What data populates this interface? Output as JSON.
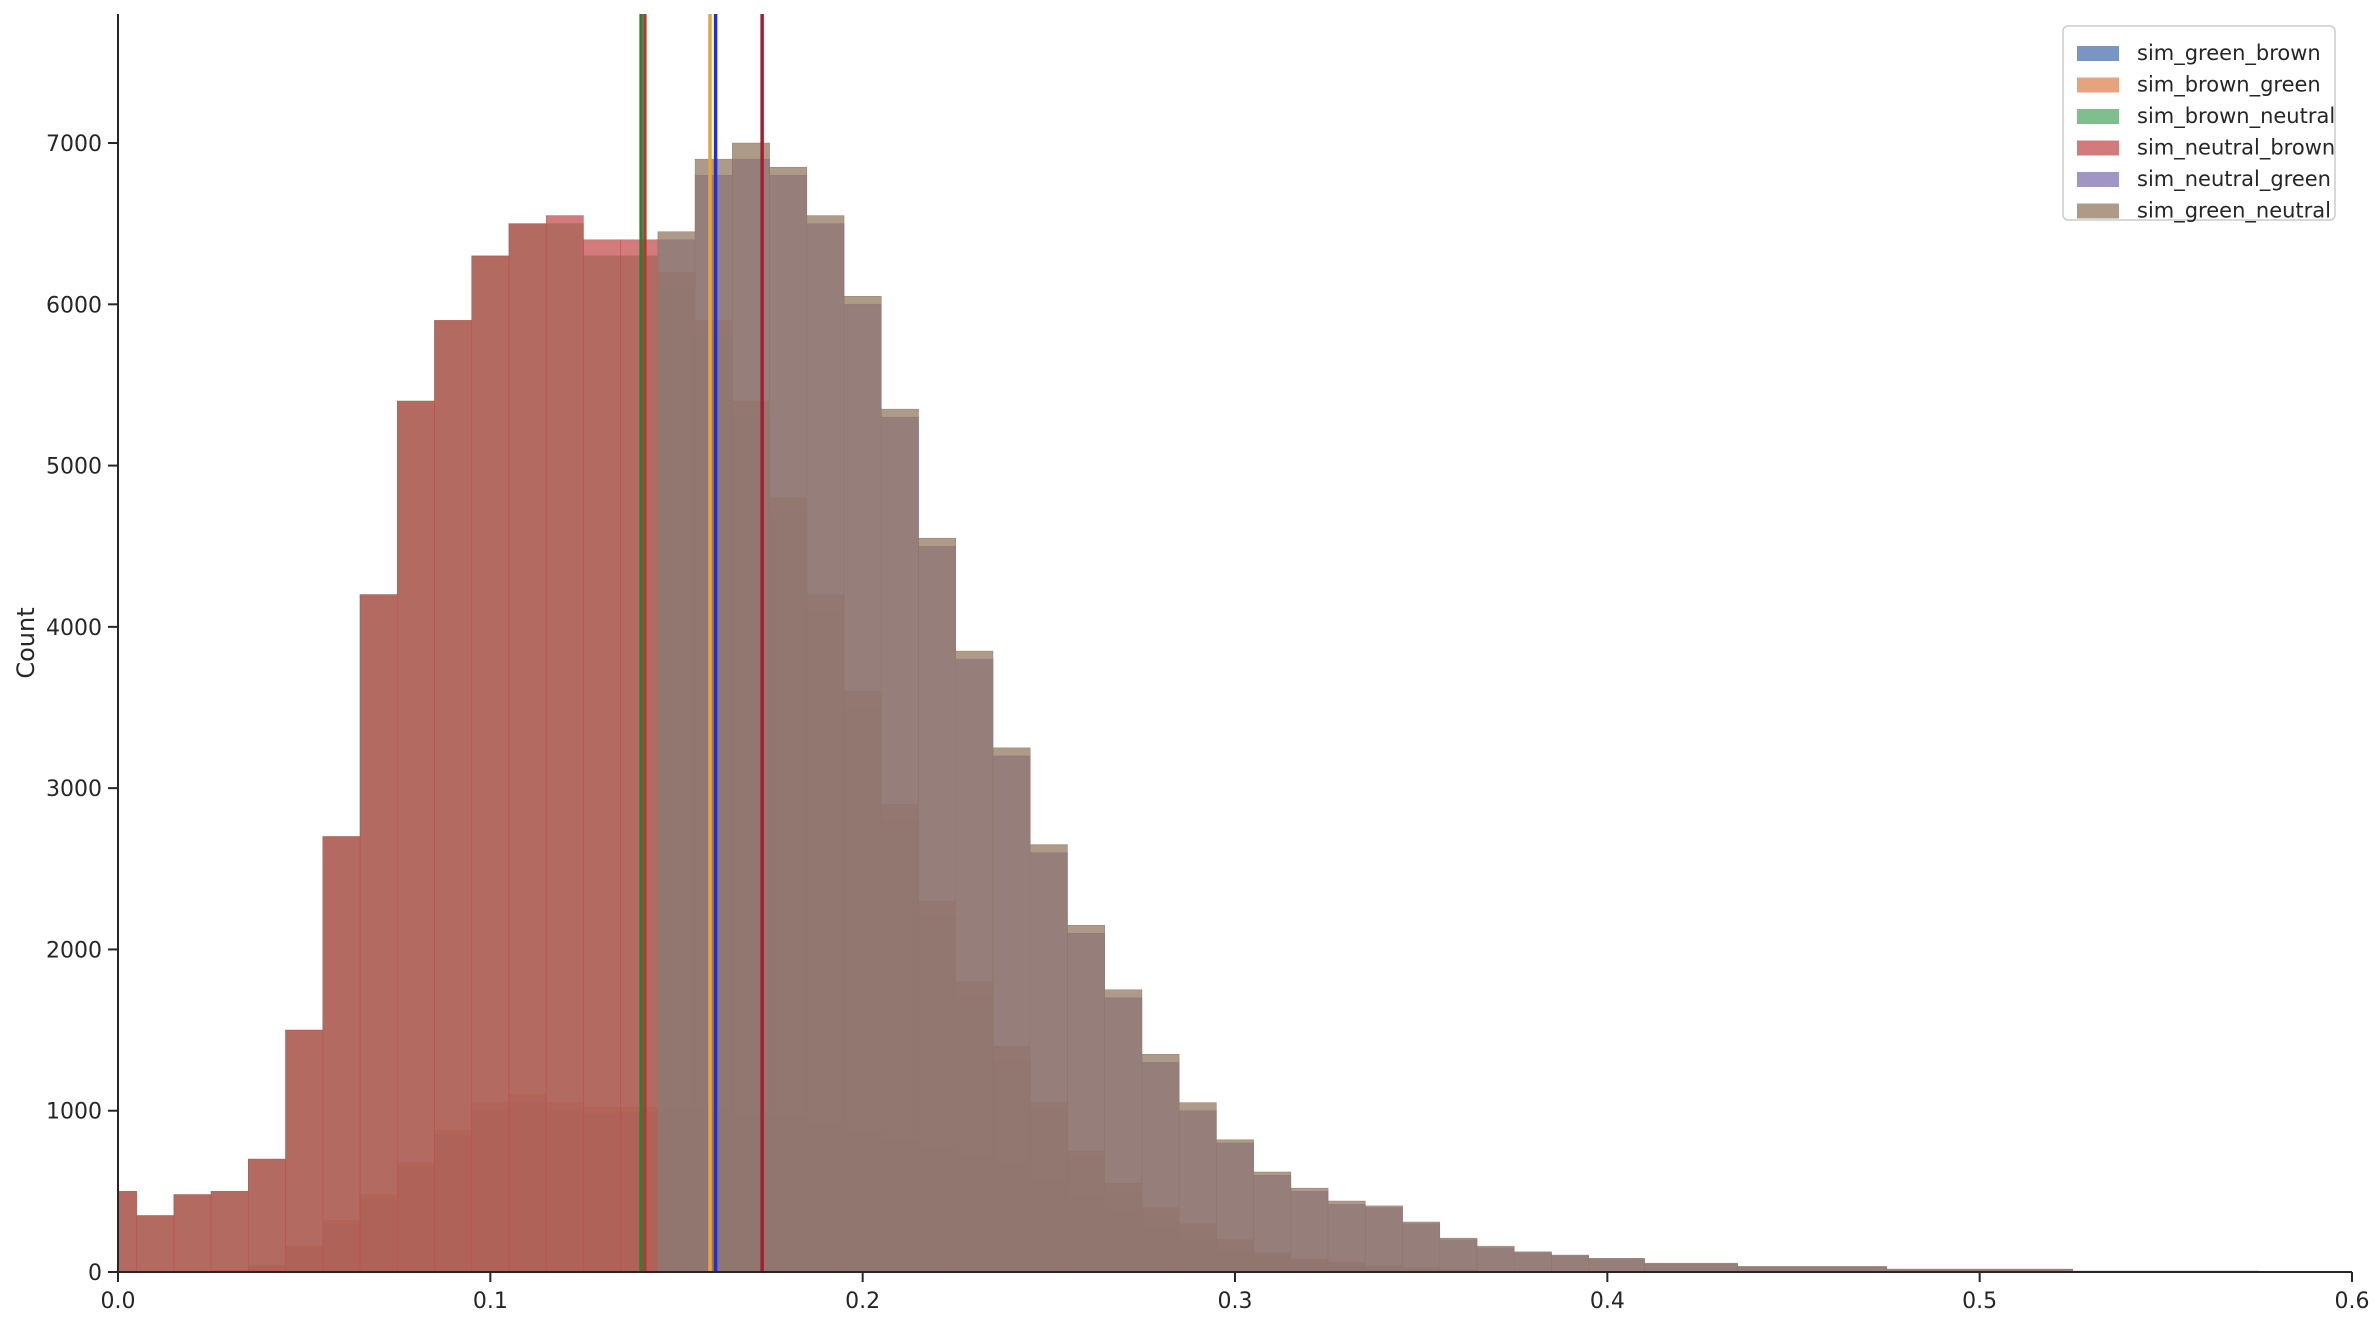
{
  "chart_data": {
    "type": "histogram",
    "title": "",
    "xlabel": "",
    "ylabel": "Count",
    "xlim": [
      0.0,
      0.6
    ],
    "ylim": [
      0,
      7800
    ],
    "xticks": [
      0.0,
      0.1,
      0.2,
      0.3,
      0.4,
      0.5,
      0.6
    ],
    "xtick_labels": [
      "0.0",
      "0.1",
      "0.2",
      "0.3",
      "0.4",
      "0.5",
      "0.6"
    ],
    "yticks": [
      0,
      1000,
      2000,
      3000,
      4000,
      5000,
      6000,
      7000
    ],
    "ytick_labels": [
      "0",
      "1000",
      "2000",
      "3000",
      "4000",
      "5000",
      "6000",
      "7000"
    ],
    "grid": false,
    "legend_position": "top-right",
    "x_centers": [
      0.0,
      0.01,
      0.02,
      0.03,
      0.04,
      0.05,
      0.06,
      0.07,
      0.08,
      0.09,
      0.1,
      0.11,
      0.12,
      0.13,
      0.14,
      0.15,
      0.16,
      0.17,
      0.18,
      0.19,
      0.2,
      0.21,
      0.22,
      0.23,
      0.24,
      0.25,
      0.26,
      0.27,
      0.28,
      0.29,
      0.3,
      0.31,
      0.32,
      0.33,
      0.34,
      0.35,
      0.36,
      0.37,
      0.38,
      0.39,
      0.4,
      0.42,
      0.45,
      0.5,
      0.55,
      0.6
    ],
    "series": [
      {
        "name": "sim_green_brown",
        "color": "#4c72b0",
        "values": [
          0,
          0,
          0,
          10,
          40,
          150,
          300,
          450,
          650,
          850,
          1000,
          1050,
          1000,
          980,
          990,
          1000,
          1000,
          950,
          950,
          900,
          850,
          800,
          750,
          700,
          650,
          550,
          450,
          350,
          250,
          180,
          120,
          80,
          50,
          30,
          20,
          10,
          5,
          0,
          0,
          0,
          0,
          0,
          0,
          0,
          0,
          0
        ]
      },
      {
        "name": "sim_brown_green",
        "color": "#dd8452",
        "values": [
          0,
          0,
          0,
          10,
          40,
          160,
          320,
          480,
          680,
          880,
          1050,
          1100,
          1050,
          1020,
          1020,
          1020,
          1020,
          980,
          970,
          920,
          870,
          820,
          770,
          720,
          660,
          560,
          460,
          360,
          260,
          190,
          130,
          90,
          60,
          35,
          20,
          10,
          5,
          0,
          0,
          0,
          0,
          0,
          0,
          0,
          0,
          0
        ]
      },
      {
        "name": "sim_brown_neutral",
        "color": "#55a868",
        "values": [
          500,
          350,
          480,
          500,
          700,
          1500,
          2700,
          4200,
          5400,
          5900,
          6300,
          6500,
          6500,
          6300,
          6300,
          6100,
          5800,
          5300,
          4700,
          4100,
          3500,
          2800,
          2200,
          1700,
          1300,
          1000,
          700,
          500,
          350,
          250,
          150,
          100,
          70,
          50,
          35,
          20,
          10,
          5,
          0,
          0,
          0,
          0,
          0,
          0,
          0,
          0
        ]
      },
      {
        "name": "sim_neutral_brown",
        "color": "#c44e52",
        "values": [
          500,
          350,
          480,
          500,
          700,
          1500,
          2700,
          4200,
          5400,
          5900,
          6300,
          6500,
          6550,
          6400,
          6400,
          6200,
          5900,
          5400,
          4800,
          4200,
          3600,
          2900,
          2300,
          1800,
          1400,
          1050,
          750,
          550,
          400,
          300,
          200,
          120,
          80,
          60,
          40,
          25,
          15,
          5,
          0,
          0,
          0,
          0,
          0,
          0,
          0,
          0
        ]
      },
      {
        "name": "sim_neutral_green",
        "color": "#8172b3",
        "values": [
          0,
          0,
          0,
          0,
          0,
          0,
          0,
          0,
          0,
          0,
          0,
          0,
          0,
          0,
          0,
          6400,
          6800,
          6900,
          6800,
          6500,
          6000,
          5300,
          4500,
          3800,
          3200,
          2600,
          2100,
          1700,
          1300,
          1000,
          800,
          600,
          500,
          420,
          400,
          300,
          200,
          150,
          120,
          100,
          80,
          50,
          30,
          15,
          5,
          0
        ]
      },
      {
        "name": "sim_green_neutral",
        "color": "#937860",
        "values": [
          0,
          0,
          0,
          0,
          0,
          0,
          0,
          0,
          0,
          0,
          0,
          0,
          0,
          0,
          0,
          6450,
          6900,
          7000,
          6850,
          6550,
          6050,
          5350,
          4550,
          3850,
          3250,
          2650,
          2150,
          1750,
          1350,
          1050,
          820,
          620,
          520,
          440,
          410,
          310,
          210,
          160,
          125,
          105,
          85,
          55,
          35,
          18,
          6,
          0
        ]
      }
    ],
    "vlines": [
      {
        "x": 0.1405,
        "color": "#2e7d32"
      },
      {
        "x": 0.1415,
        "color": "#b03a2e"
      },
      {
        "x": 0.159,
        "color": "#e8a33d"
      },
      {
        "x": 0.1605,
        "color": "#1f2fd6"
      },
      {
        "x": 0.173,
        "color": "#a31f34"
      }
    ]
  }
}
